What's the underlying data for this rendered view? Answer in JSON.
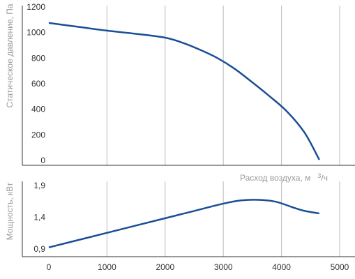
{
  "colors": {
    "curve": "#1a4f95",
    "axis": "#333333",
    "grid": "#bbbbbb",
    "axis_title": "#999999"
  },
  "chart_data": [
    {
      "type": "line",
      "ylabel": "Статическое давление, Па",
      "xlabel": "Расход воздуха, м",
      "xlabel_sup": "3",
      "xlabel_tail": "/ч",
      "xlim": [
        -450,
        5000
      ],
      "ylim": [
        -50,
        1200
      ],
      "yticks": [
        "1200",
        "1000",
        "800",
        "600",
        "400",
        "200",
        "0"
      ],
      "grid": true,
      "series": [
        {
          "x": [
            0,
            500,
            1000,
            1500,
            2000,
            2300,
            2600,
            2900,
            3200,
            3500,
            3800,
            4100,
            4400,
            4650
          ],
          "y": [
            1075,
            1045,
            1015,
            990,
            960,
            920,
            865,
            800,
            715,
            610,
            500,
            380,
            215,
            5
          ]
        }
      ]
    },
    {
      "type": "line",
      "ylabel": "Мощность, кВт",
      "xlim": [
        -450,
        5000
      ],
      "ylim": [
        0.8,
        2.0
      ],
      "yticks": [
        "1,9",
        "1,4",
        "0,9"
      ],
      "xticks": [
        "0",
        "1000",
        "2000",
        "3000",
        "4000",
        "5000"
      ],
      "grid": true,
      "series": [
        {
          "x": [
            0,
            500,
            1000,
            1500,
            2000,
            2500,
            3000,
            3300,
            3600,
            3900,
            4200,
            4400,
            4650
          ],
          "y": [
            0.925,
            1.04,
            1.155,
            1.27,
            1.385,
            1.5,
            1.615,
            1.665,
            1.675,
            1.645,
            1.555,
            1.5,
            1.46
          ]
        }
      ]
    }
  ]
}
